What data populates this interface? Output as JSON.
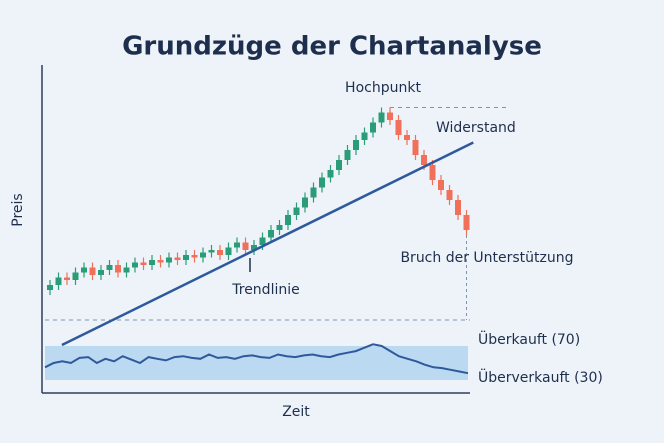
{
  "chart_data": {
    "type": "candlestick",
    "title": "Grundzüge der Chartanalyse",
    "x_label": "Zeit",
    "y_label": "Preis",
    "ylim": [
      0,
      100
    ],
    "up_color": "#2a9d78",
    "down_color": "#f0705a",
    "open": [
      12,
      14,
      17,
      16,
      19,
      21,
      18,
      20,
      22,
      19,
      21,
      23,
      22,
      24,
      23,
      25,
      24,
      26,
      25,
      27,
      28,
      26,
      29,
      31,
      28,
      30,
      33,
      36,
      38,
      42,
      45,
      49,
      53,
      57,
      60,
      64,
      68,
      72,
      75,
      79,
      83,
      80,
      74,
      72,
      66,
      62,
      56,
      52,
      48,
      42
    ],
    "high": [
      16,
      19,
      19,
      21,
      23,
      23,
      22,
      24,
      24,
      23,
      25,
      25,
      26,
      26,
      27,
      27,
      28,
      28,
      29,
      30,
      30,
      31,
      33,
      33,
      32,
      35,
      38,
      40,
      44,
      47,
      51,
      55,
      59,
      62,
      66,
      70,
      74,
      77,
      81,
      85,
      85,
      82,
      76,
      74,
      68,
      64,
      58,
      54,
      50,
      44
    ],
    "low": [
      10,
      12,
      14,
      14,
      17,
      16,
      16,
      18,
      17,
      17,
      19,
      20,
      20,
      21,
      21,
      22,
      22,
      23,
      23,
      25,
      24,
      24,
      27,
      26,
      26,
      28,
      31,
      34,
      36,
      40,
      43,
      47,
      51,
      55,
      58,
      62,
      66,
      70,
      73,
      77,
      78,
      72,
      70,
      64,
      60,
      54,
      50,
      46,
      40,
      34
    ],
    "close": [
      14,
      17,
      16,
      19,
      21,
      18,
      20,
      22,
      19,
      21,
      23,
      22,
      24,
      23,
      25,
      24,
      26,
      25,
      27,
      28,
      26,
      29,
      31,
      28,
      30,
      33,
      36,
      38,
      42,
      45,
      49,
      53,
      57,
      60,
      64,
      68,
      72,
      75,
      79,
      83,
      80,
      74,
      72,
      66,
      62,
      56,
      52,
      48,
      42,
      36
    ],
    "trendline": {
      "label": "Trendlinie",
      "start": [
        1.4,
        -10
      ],
      "end": [
        49.8,
        71
      ],
      "color": "#2e5a9c"
    },
    "resistance": {
      "label": "Widerstand",
      "value": 85
    },
    "peak_label": "Hochpunkt",
    "breakout_label": "Bruch der Unterstützung",
    "oscillator": {
      "ylim": [
        30,
        70
      ],
      "color": "#2e5a9c",
      "band_color": "#bcd9f2",
      "values": [
        45,
        50,
        52,
        50,
        56,
        57,
        50,
        55,
        52,
        58,
        54,
        50,
        57,
        55,
        53,
        57,
        58,
        56,
        55,
        60,
        56,
        57,
        55,
        58,
        59,
        57,
        56,
        60,
        58,
        57,
        59,
        60,
        58,
        57,
        60,
        62,
        64,
        68,
        72,
        70,
        64,
        58,
        55,
        52,
        48,
        45,
        44,
        42,
        40,
        38
      ],
      "overbought": {
        "label": "Überkauft (70)",
        "value": 70
      },
      "oversold": {
        "label": "Überverkauft (30)",
        "value": 30
      }
    }
  }
}
